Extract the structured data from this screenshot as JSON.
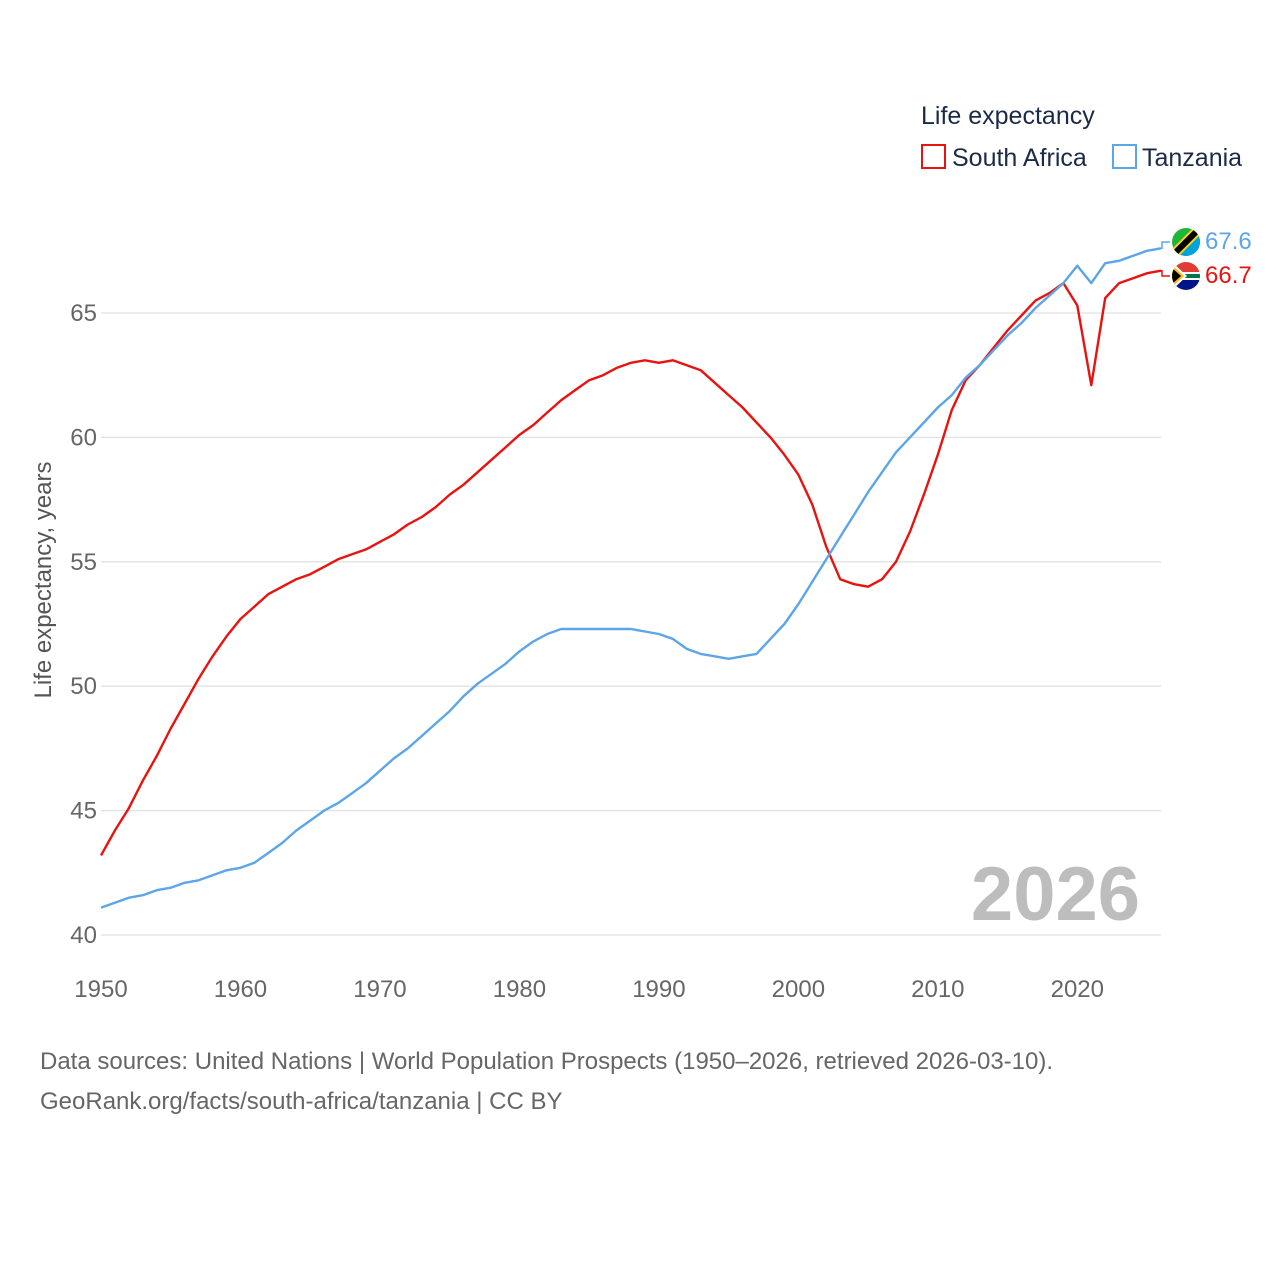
{
  "legend": {
    "title": "Life expectancy",
    "items": [
      {
        "label": "South Africa",
        "color": "#e8130f"
      },
      {
        "label": "Tanzania",
        "color": "#5ca5e8"
      }
    ]
  },
  "big_year": "2026",
  "footer": {
    "sources": "Data sources: United Nations | World Population Prospects (1950–2026, retrieved 2026-03-10).",
    "link": "GeoRank.org/facts/south-africa/tanzania | CC BY"
  },
  "chart_data": {
    "type": "line",
    "title": "Life expectancy",
    "xlabel": "",
    "ylabel": "Life expectancy, years",
    "xlim": [
      1950,
      2026
    ],
    "ylim": [
      40,
      68
    ],
    "x_ticks": [
      1950,
      1960,
      1970,
      1980,
      1990,
      2000,
      2010,
      2020
    ],
    "y_ticks": [
      40,
      45,
      50,
      55,
      60,
      65
    ],
    "grid": true,
    "legend_position": "top-right",
    "series": [
      {
        "name": "South Africa",
        "color": "#e8130f",
        "end_label": "66.7",
        "x": [
          1950,
          1951,
          1952,
          1953,
          1954,
          1955,
          1956,
          1957,
          1958,
          1959,
          1960,
          1961,
          1962,
          1963,
          1964,
          1965,
          1966,
          1967,
          1968,
          1969,
          1970,
          1971,
          1972,
          1973,
          1974,
          1975,
          1976,
          1977,
          1978,
          1979,
          1980,
          1981,
          1982,
          1983,
          1984,
          1985,
          1986,
          1987,
          1988,
          1989,
          1990,
          1991,
          1992,
          1993,
          1994,
          1995,
          1996,
          1997,
          1998,
          1999,
          2000,
          2001,
          2002,
          2003,
          2004,
          2005,
          2006,
          2007,
          2008,
          2009,
          2010,
          2011,
          2012,
          2013,
          2014,
          2015,
          2016,
          2017,
          2018,
          2019,
          2020,
          2021,
          2022,
          2023,
          2024,
          2025,
          2026
        ],
        "values": [
          43.2,
          44.2,
          45.1,
          46.2,
          47.2,
          48.3,
          49.3,
          50.3,
          51.2,
          52.0,
          52.7,
          53.2,
          53.7,
          54.0,
          54.3,
          54.5,
          54.8,
          55.1,
          55.3,
          55.5,
          55.8,
          56.1,
          56.5,
          56.8,
          57.2,
          57.7,
          58.1,
          58.6,
          59.1,
          59.6,
          60.1,
          60.5,
          61.0,
          61.5,
          61.9,
          62.3,
          62.5,
          62.8,
          63.0,
          63.1,
          63.0,
          63.1,
          62.9,
          62.7,
          62.2,
          61.7,
          61.2,
          60.6,
          60.0,
          59.3,
          58.5,
          57.3,
          55.6,
          54.3,
          54.1,
          54.0,
          54.3,
          55.0,
          56.2,
          57.7,
          59.3,
          61.1,
          62.3,
          62.9,
          63.6,
          64.3,
          64.9,
          65.5,
          65.8,
          66.2,
          65.3,
          62.1,
          65.6,
          66.2,
          66.4,
          66.6,
          66.7
        ]
      },
      {
        "name": "Tanzania",
        "color": "#5ca5e8",
        "end_label": "67.6",
        "x": [
          1950,
          1951,
          1952,
          1953,
          1954,
          1955,
          1956,
          1957,
          1958,
          1959,
          1960,
          1961,
          1962,
          1963,
          1964,
          1965,
          1966,
          1967,
          1968,
          1969,
          1970,
          1971,
          1972,
          1973,
          1974,
          1975,
          1976,
          1977,
          1978,
          1979,
          1980,
          1981,
          1982,
          1983,
          1984,
          1985,
          1986,
          1987,
          1988,
          1989,
          1990,
          1991,
          1992,
          1993,
          1994,
          1995,
          1996,
          1997,
          1998,
          1999,
          2000,
          2001,
          2002,
          2003,
          2004,
          2005,
          2006,
          2007,
          2008,
          2009,
          2010,
          2011,
          2012,
          2013,
          2014,
          2015,
          2016,
          2017,
          2018,
          2019,
          2020,
          2021,
          2022,
          2023,
          2024,
          2025,
          2026
        ],
        "values": [
          41.1,
          41.3,
          41.5,
          41.6,
          41.8,
          41.9,
          42.1,
          42.2,
          42.4,
          42.6,
          42.7,
          42.9,
          43.3,
          43.7,
          44.2,
          44.6,
          45.0,
          45.3,
          45.7,
          46.1,
          46.6,
          47.1,
          47.5,
          48.0,
          48.5,
          49.0,
          49.6,
          50.1,
          50.5,
          50.9,
          51.4,
          51.8,
          52.1,
          52.3,
          52.3,
          52.3,
          52.3,
          52.3,
          52.3,
          52.2,
          52.1,
          51.9,
          51.5,
          51.3,
          51.2,
          51.1,
          51.2,
          51.3,
          51.9,
          52.5,
          53.3,
          54.2,
          55.1,
          56.0,
          56.9,
          57.8,
          58.6,
          59.4,
          60.0,
          60.6,
          61.2,
          61.7,
          62.4,
          62.9,
          63.5,
          64.1,
          64.6,
          65.2,
          65.7,
          66.2,
          66.9,
          66.2,
          67.0,
          67.1,
          67.3,
          67.5,
          67.6
        ]
      }
    ]
  }
}
